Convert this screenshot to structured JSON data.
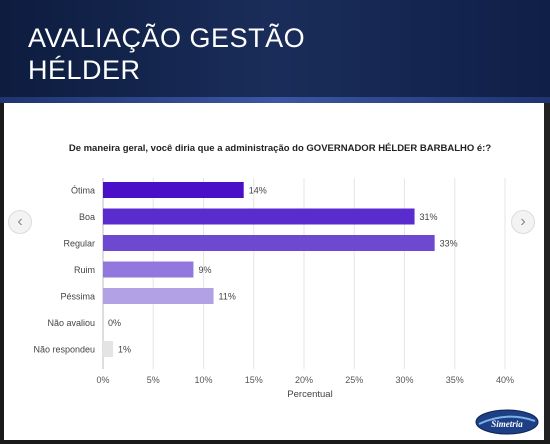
{
  "header": {
    "title_line1": "AVALIAÇÃO GESTÃO",
    "title_line2": "HÉLDER"
  },
  "navigation": {
    "prev_icon": "chevron-left-icon",
    "next_icon": "chevron-right-icon"
  },
  "logo": {
    "text": "Simetria"
  },
  "colors": {
    "header_bg": "#13234b",
    "tick_text": "#555555",
    "grid": "#e6e6e6"
  },
  "chart_data": {
    "type": "bar",
    "orientation": "horizontal",
    "title": "De maneira geral, você diria que a administração do GOVERNADOR HÉLDER BARBALHO é:?",
    "xlabel": "Percentual",
    "ylabel": "",
    "xlim": [
      0,
      40
    ],
    "x_ticks": [
      "0%",
      "5%",
      "10%",
      "15%",
      "20%",
      "25%",
      "30%",
      "35%",
      "40%"
    ],
    "x_tick_values": [
      0,
      5,
      10,
      15,
      20,
      25,
      30,
      35,
      40
    ],
    "grid": true,
    "categories": [
      "Ótima",
      "Boa",
      "Regular",
      "Ruim",
      "Péssima",
      "Não avaliou",
      "Não respondeu"
    ],
    "values": [
      14,
      31,
      33,
      9,
      11,
      0,
      1
    ],
    "data_labels": [
      "14%",
      "31%",
      "33%",
      "9%",
      "11%",
      "0%",
      "1%"
    ],
    "bar_colors": [
      "#4a10c8",
      "#5b2ccd",
      "#6d49d0",
      "#9277dc",
      "#b3a1e6",
      "#d8d0f2",
      "#e4e4e4"
    ]
  }
}
